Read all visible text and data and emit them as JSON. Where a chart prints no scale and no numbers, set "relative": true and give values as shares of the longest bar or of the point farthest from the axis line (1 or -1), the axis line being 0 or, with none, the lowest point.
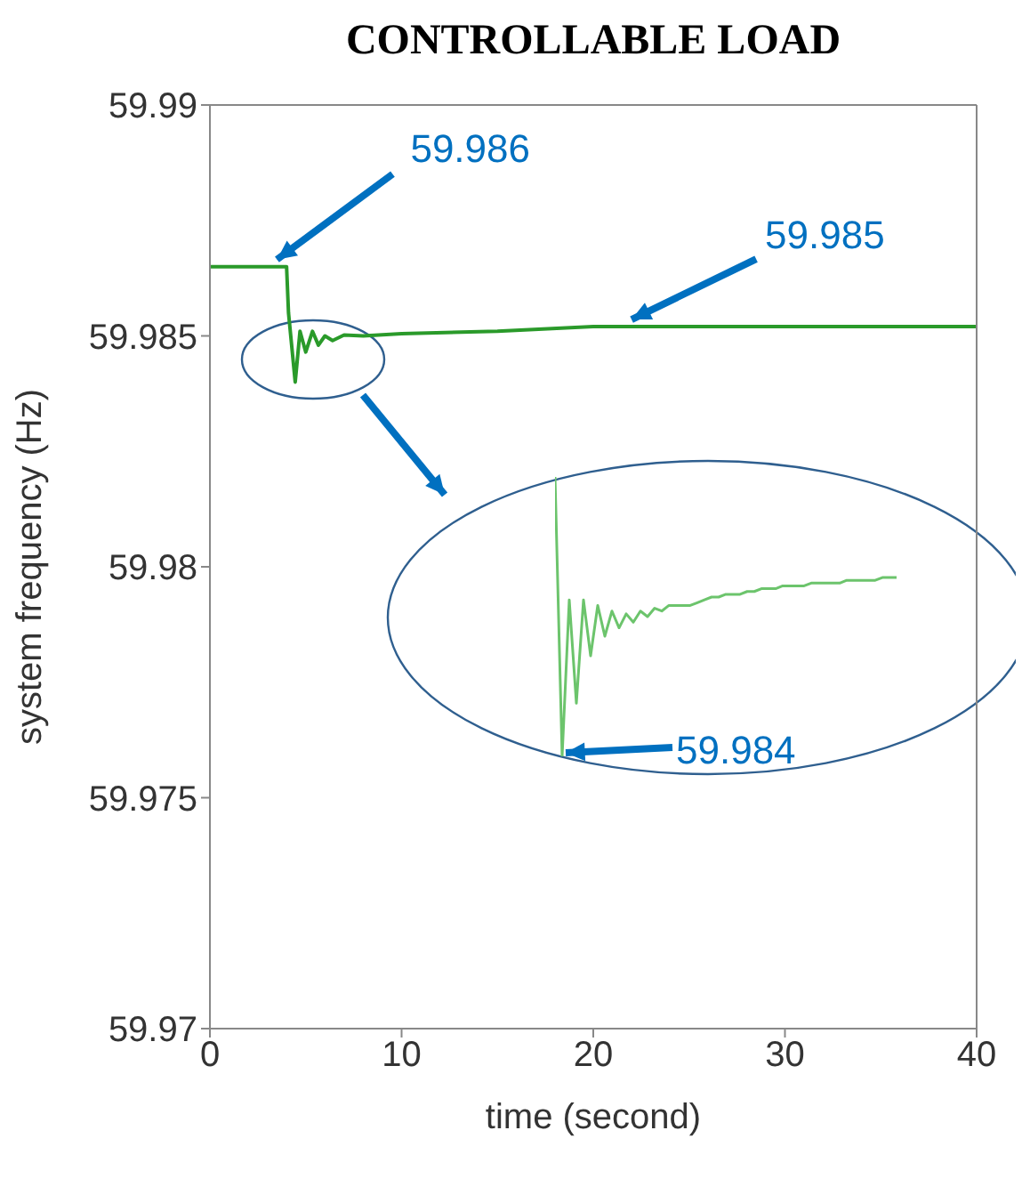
{
  "chart_data": [
    {
      "type": "line",
      "title": "CONTROLLABLE LOAD",
      "xlabel": "time (second)",
      "ylabel": "system frequency (Hz)",
      "x": [
        0,
        4.0,
        4.1,
        4.45,
        4.7,
        5.0,
        5.35,
        5.66,
        6.0,
        6.4,
        7,
        8,
        10,
        15,
        20,
        30,
        40
      ],
      "series": [
        {
          "color": "#2a9a2a",
          "values": [
            59.9865,
            59.9865,
            59.9855,
            59.984,
            59.9851,
            59.98465,
            59.9851,
            59.9848,
            59.985,
            59.9849,
            59.98502,
            59.985,
            59.98505,
            59.9851,
            59.9852,
            59.9852,
            59.9852
          ]
        }
      ],
      "xlim": [
        0,
        40
      ],
      "xticks": [
        0,
        10,
        20,
        30,
        40
      ],
      "ylim": [
        59.97,
        59.99
      ],
      "yticks": [
        59.97,
        59.975,
        59.98,
        59.985,
        59.99
      ],
      "marker": "none",
      "line_style": "solid",
      "annotations": [
        {
          "text": "59.986",
          "x": 3.5,
          "y": 59.9865
        },
        {
          "text": "59.985",
          "x": 22,
          "y": 59.9852
        }
      ]
    },
    {
      "type": "line",
      "relative": true,
      "marker": "none",
      "line_style": "solid",
      "categories": [
        null,
        null,
        null,
        null,
        null,
        null,
        null,
        null,
        null,
        null,
        null,
        null,
        null,
        null,
        null,
        null,
        null,
        null,
        null,
        null,
        null,
        null,
        null,
        null,
        null,
        null,
        null,
        null,
        null,
        null,
        null,
        null,
        null,
        null,
        null,
        null,
        null,
        null,
        null,
        null,
        null,
        null,
        null,
        null,
        null,
        null,
        null,
        null,
        null
      ],
      "series": [
        {
          "color": "#6cc46c",
          "values": [
            1,
            0,
            0.56,
            0.19,
            0.56,
            0.36,
            0.54,
            0.43,
            0.52,
            0.46,
            0.51,
            0.48,
            0.52,
            0.5,
            0.53,
            0.52,
            0.54,
            0.54,
            0.54,
            0.54,
            0.55,
            0.56,
            0.57,
            0.57,
            0.58,
            0.58,
            0.58,
            0.59,
            0.59,
            0.6,
            0.6,
            0.6,
            0.61,
            0.61,
            0.61,
            0.61,
            0.62,
            0.62,
            0.62,
            0.62,
            0.62,
            0.63,
            0.63,
            0.63,
            0.63,
            0.63,
            0.64,
            0.64,
            0.64
          ]
        }
      ],
      "annotations": [
        "59.984"
      ]
    }
  ]
}
